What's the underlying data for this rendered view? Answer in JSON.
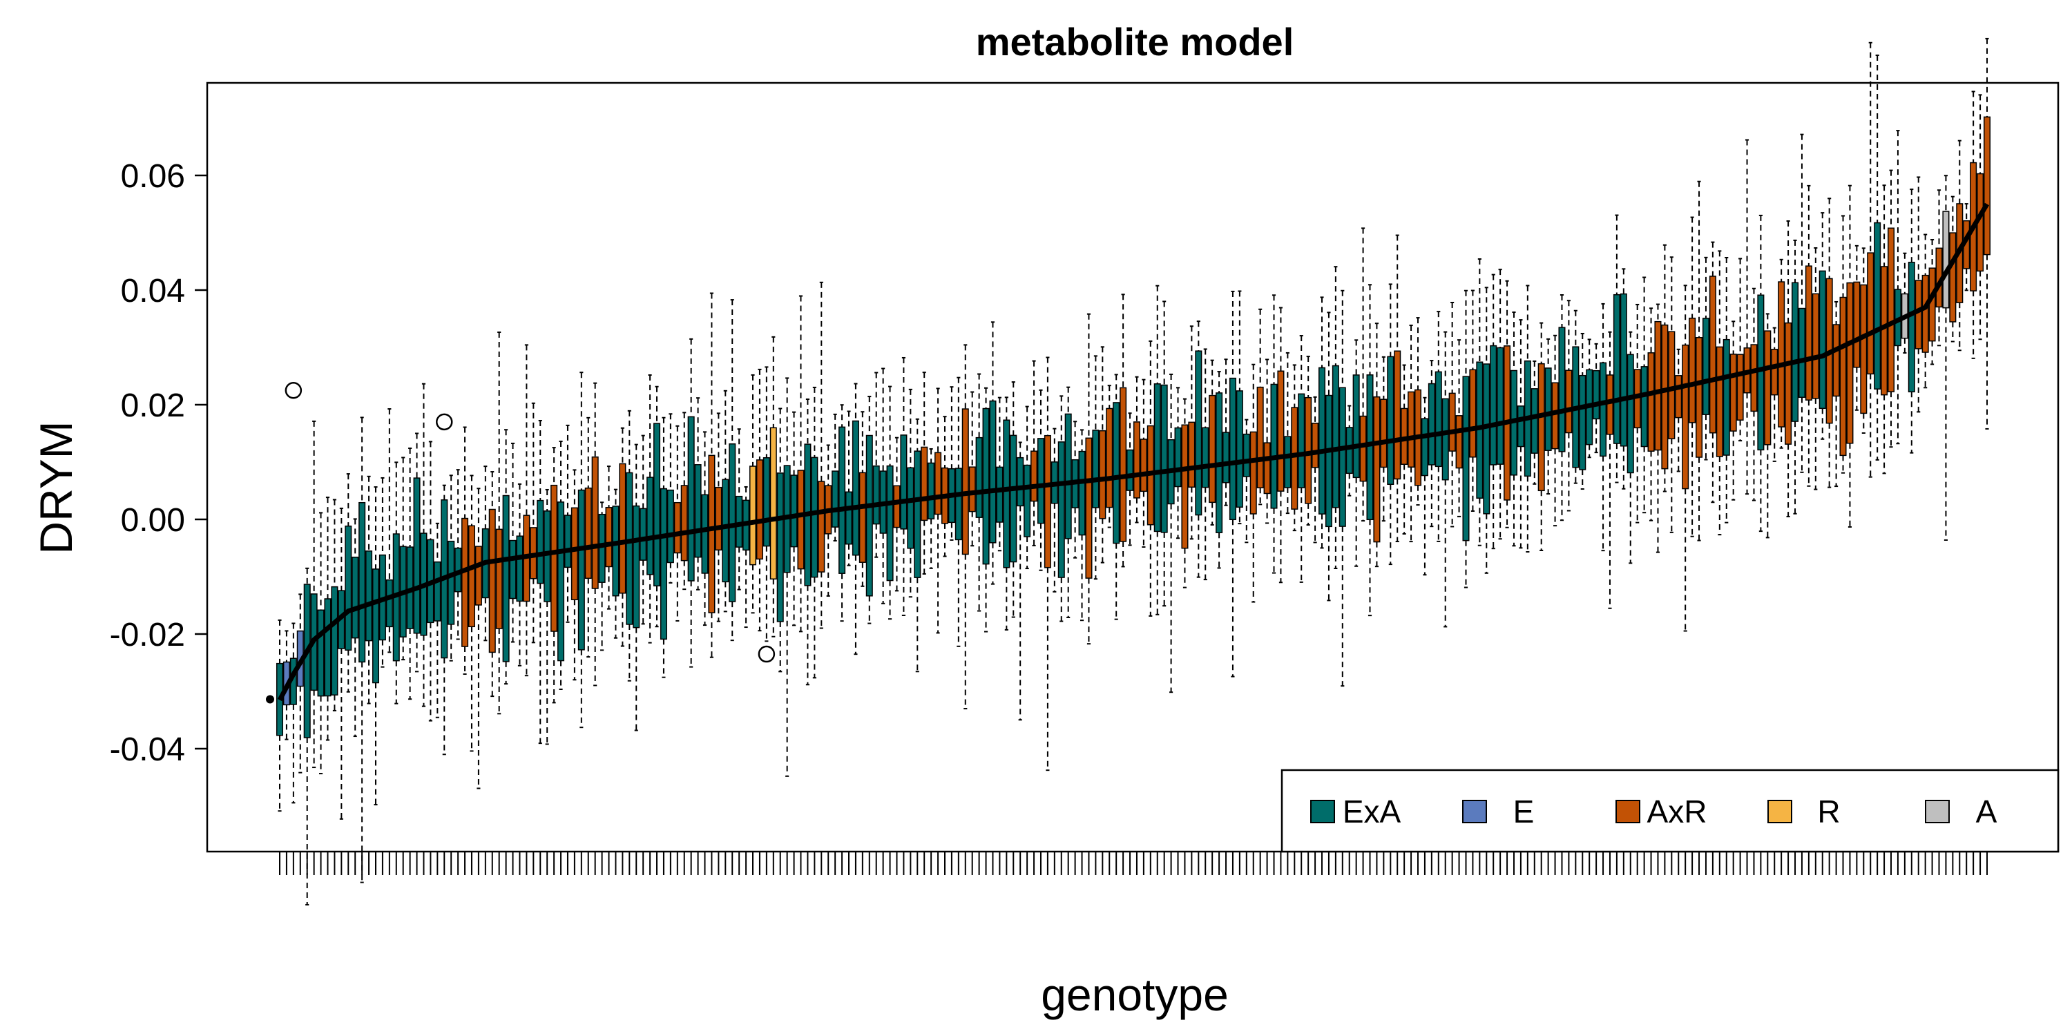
{
  "chart_data": {
    "type": "boxplot",
    "title": "metabolite model",
    "xlabel": "genotype",
    "ylabel": "DRYM",
    "ylim": [
      -0.058,
      0.076
    ],
    "yticks": [
      -0.04,
      -0.02,
      0.0,
      0.02,
      0.04,
      0.06
    ],
    "ytick_labels": [
      "-0.04",
      "-0.02",
      "0.00",
      "0.02",
      "0.04",
      "0.06"
    ],
    "x_tick_labels_shown": false,
    "grid": false,
    "legend_position": "bottom-right",
    "legend": [
      {
        "label": "ExA",
        "color": "#006D6A"
      },
      {
        "label": "E",
        "color": "#5B7BBE"
      },
      {
        "label": "AxR",
        "color": "#C25205"
      },
      {
        "label": "R",
        "color": "#F5B444"
      },
      {
        "label": "A",
        "color": "#BFBFBF"
      }
    ],
    "n_genotypes": 250,
    "sorted_by": "median",
    "median_trend_anchors": [
      {
        "rank": 0,
        "median": -0.0315
      },
      {
        "rank": 2,
        "median": -0.027
      },
      {
        "rank": 5,
        "median": -0.021
      },
      {
        "rank": 10,
        "median": -0.016
      },
      {
        "rank": 20,
        "median": -0.012
      },
      {
        "rank": 30,
        "median": -0.0075
      },
      {
        "rank": 50,
        "median": -0.004
      },
      {
        "rank": 80,
        "median": 0.0015
      },
      {
        "rank": 100,
        "median": 0.0045
      },
      {
        "rank": 120,
        "median": 0.007
      },
      {
        "rank": 150,
        "median": 0.0115
      },
      {
        "rank": 175,
        "median": 0.016
      },
      {
        "rank": 200,
        "median": 0.022
      },
      {
        "rank": 225,
        "median": 0.0285
      },
      {
        "rank": 240,
        "median": 0.037
      },
      {
        "rank": 249,
        "median": 0.055
      }
    ],
    "outliers": [
      {
        "rank": 2,
        "value": 0.0225
      },
      {
        "rank": 24,
        "value": 0.017
      },
      {
        "rank": 71,
        "value": -0.0235
      }
    ]
  }
}
